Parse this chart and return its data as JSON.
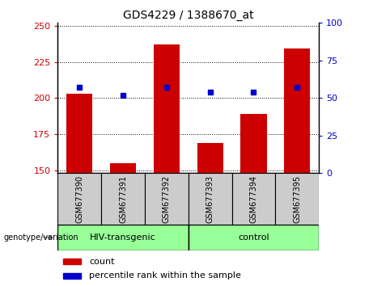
{
  "title": "GDS4229 / 1388670_at",
  "samples": [
    "GSM677390",
    "GSM677391",
    "GSM677392",
    "GSM677393",
    "GSM677394",
    "GSM677395"
  ],
  "bar_values": [
    203,
    155,
    237,
    169,
    189,
    234
  ],
  "dot_values": [
    57,
    52,
    57,
    54,
    54,
    57
  ],
  "ylim_left": [
    148,
    252
  ],
  "ylim_right": [
    0,
    100
  ],
  "yticks_left": [
    150,
    175,
    200,
    225,
    250
  ],
  "yticks_right": [
    0,
    25,
    50,
    75,
    100
  ],
  "bar_bottom": 148,
  "bar_color": "#cc0000",
  "dot_color": "#0000cc",
  "groups": [
    {
      "label": "HIV-transgenic",
      "start": 0,
      "end": 3,
      "color": "#99ff99"
    },
    {
      "label": "control",
      "start": 3,
      "end": 6,
      "color": "#99ff99"
    }
  ],
  "group_label": "genotype/variation",
  "legend_items": [
    {
      "label": "count",
      "color": "#cc0000"
    },
    {
      "label": "percentile rank within the sample",
      "color": "#0000cc"
    }
  ],
  "bar_width": 0.6,
  "bg_color": "#ffffff",
  "plot_bg_color": "#ffffff",
  "tick_label_area_color": "#cccccc",
  "group_area_color": "#90ee90"
}
